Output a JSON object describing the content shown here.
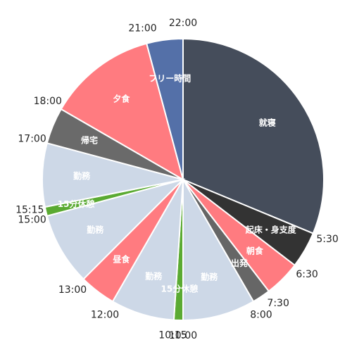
{
  "chart_data": {
    "type": "pie",
    "categories": [
      "就寝",
      "起床・身支度",
      "朝食",
      "出発",
      "勤務",
      "15分休憩",
      "勤務",
      "昼食",
      "勤務",
      "15分休憩",
      "勤務",
      "帰宅",
      "夕食",
      "フリー時間"
    ],
    "values": [
      7.5,
      1,
      1,
      0.5,
      2,
      0.25,
      1.75,
      1,
      2,
      0.25,
      1.75,
      1,
      3,
      1
    ],
    "colors": [
      "#454d5b",
      "#333333",
      "#ff7b80",
      "#666666",
      "#cdd8e7",
      "#5aaa32",
      "#cdd8e7",
      "#ff7b80",
      "#cdd8e7",
      "#5aaa32",
      "#cdd8e7",
      "#6a6a6a",
      "#ff7b80",
      "#5470a8"
    ],
    "time_labels": [
      "22:00",
      "5:30",
      "6:30",
      "7:30",
      "8:00",
      "10:00",
      "10:15",
      "12:00",
      "13:00",
      "15:00",
      "15:15",
      "17:00",
      "18:00",
      "21:00"
    ]
  }
}
